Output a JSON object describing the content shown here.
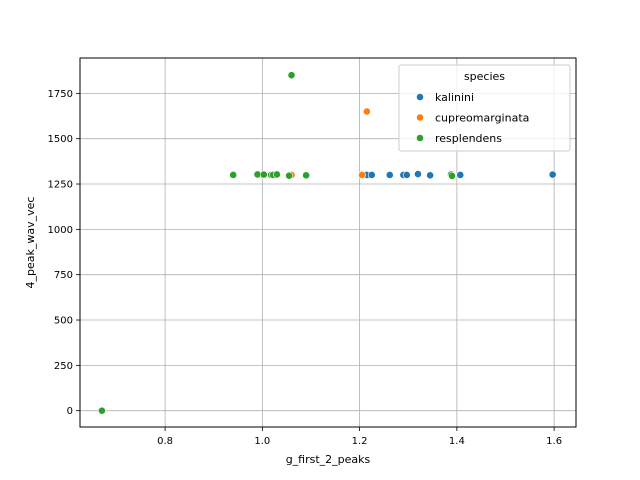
{
  "chart_data": {
    "type": "scatter",
    "xlabel": "g_first_2_peaks",
    "ylabel": "4_peak_wav_vec",
    "xlim": [
      0.625,
      1.645
    ],
    "ylim": [
      -90,
      1945
    ],
    "xticks": [
      0.8,
      1.0,
      1.2,
      1.4,
      1.6
    ],
    "xtick_labels": [
      "0.8",
      "1.0",
      "1.2",
      "1.4",
      "1.6"
    ],
    "yticks": [
      0,
      250,
      500,
      750,
      1000,
      1250,
      1500,
      1750
    ],
    "ytick_labels": [
      "0",
      "250",
      "500",
      "750",
      "1000",
      "1250",
      "1500",
      "1750"
    ],
    "grid": true,
    "legend": {
      "title": "species",
      "placement": "top-right"
    },
    "series": [
      {
        "name": "kalinini",
        "color": "#1f77b4",
        "points": [
          [
            1.215,
            1300
          ],
          [
            1.225,
            1300
          ],
          [
            1.262,
            1300
          ],
          [
            1.29,
            1300
          ],
          [
            1.297,
            1300
          ],
          [
            1.32,
            1305
          ],
          [
            1.345,
            1298
          ],
          [
            1.407,
            1300
          ],
          [
            1.597,
            1302
          ]
        ]
      },
      {
        "name": "cupreomarginata",
        "color": "#ff7f0e",
        "points": [
          [
            1.0,
            1300
          ],
          [
            1.06,
            1300
          ],
          [
            1.205,
            1300
          ],
          [
            1.215,
            1650
          ]
        ]
      },
      {
        "name": "resplendens",
        "color": "#2ca02c",
        "points": [
          [
            0.67,
            0
          ],
          [
            0.94,
            1300
          ],
          [
            0.99,
            1303
          ],
          [
            1.003,
            1302
          ],
          [
            1.018,
            1300
          ],
          [
            1.022,
            1300
          ],
          [
            1.03,
            1303
          ],
          [
            1.055,
            1296
          ],
          [
            1.06,
            1850
          ],
          [
            1.09,
            1298
          ],
          [
            1.388,
            1302
          ],
          [
            1.39,
            1295
          ]
        ]
      }
    ]
  }
}
